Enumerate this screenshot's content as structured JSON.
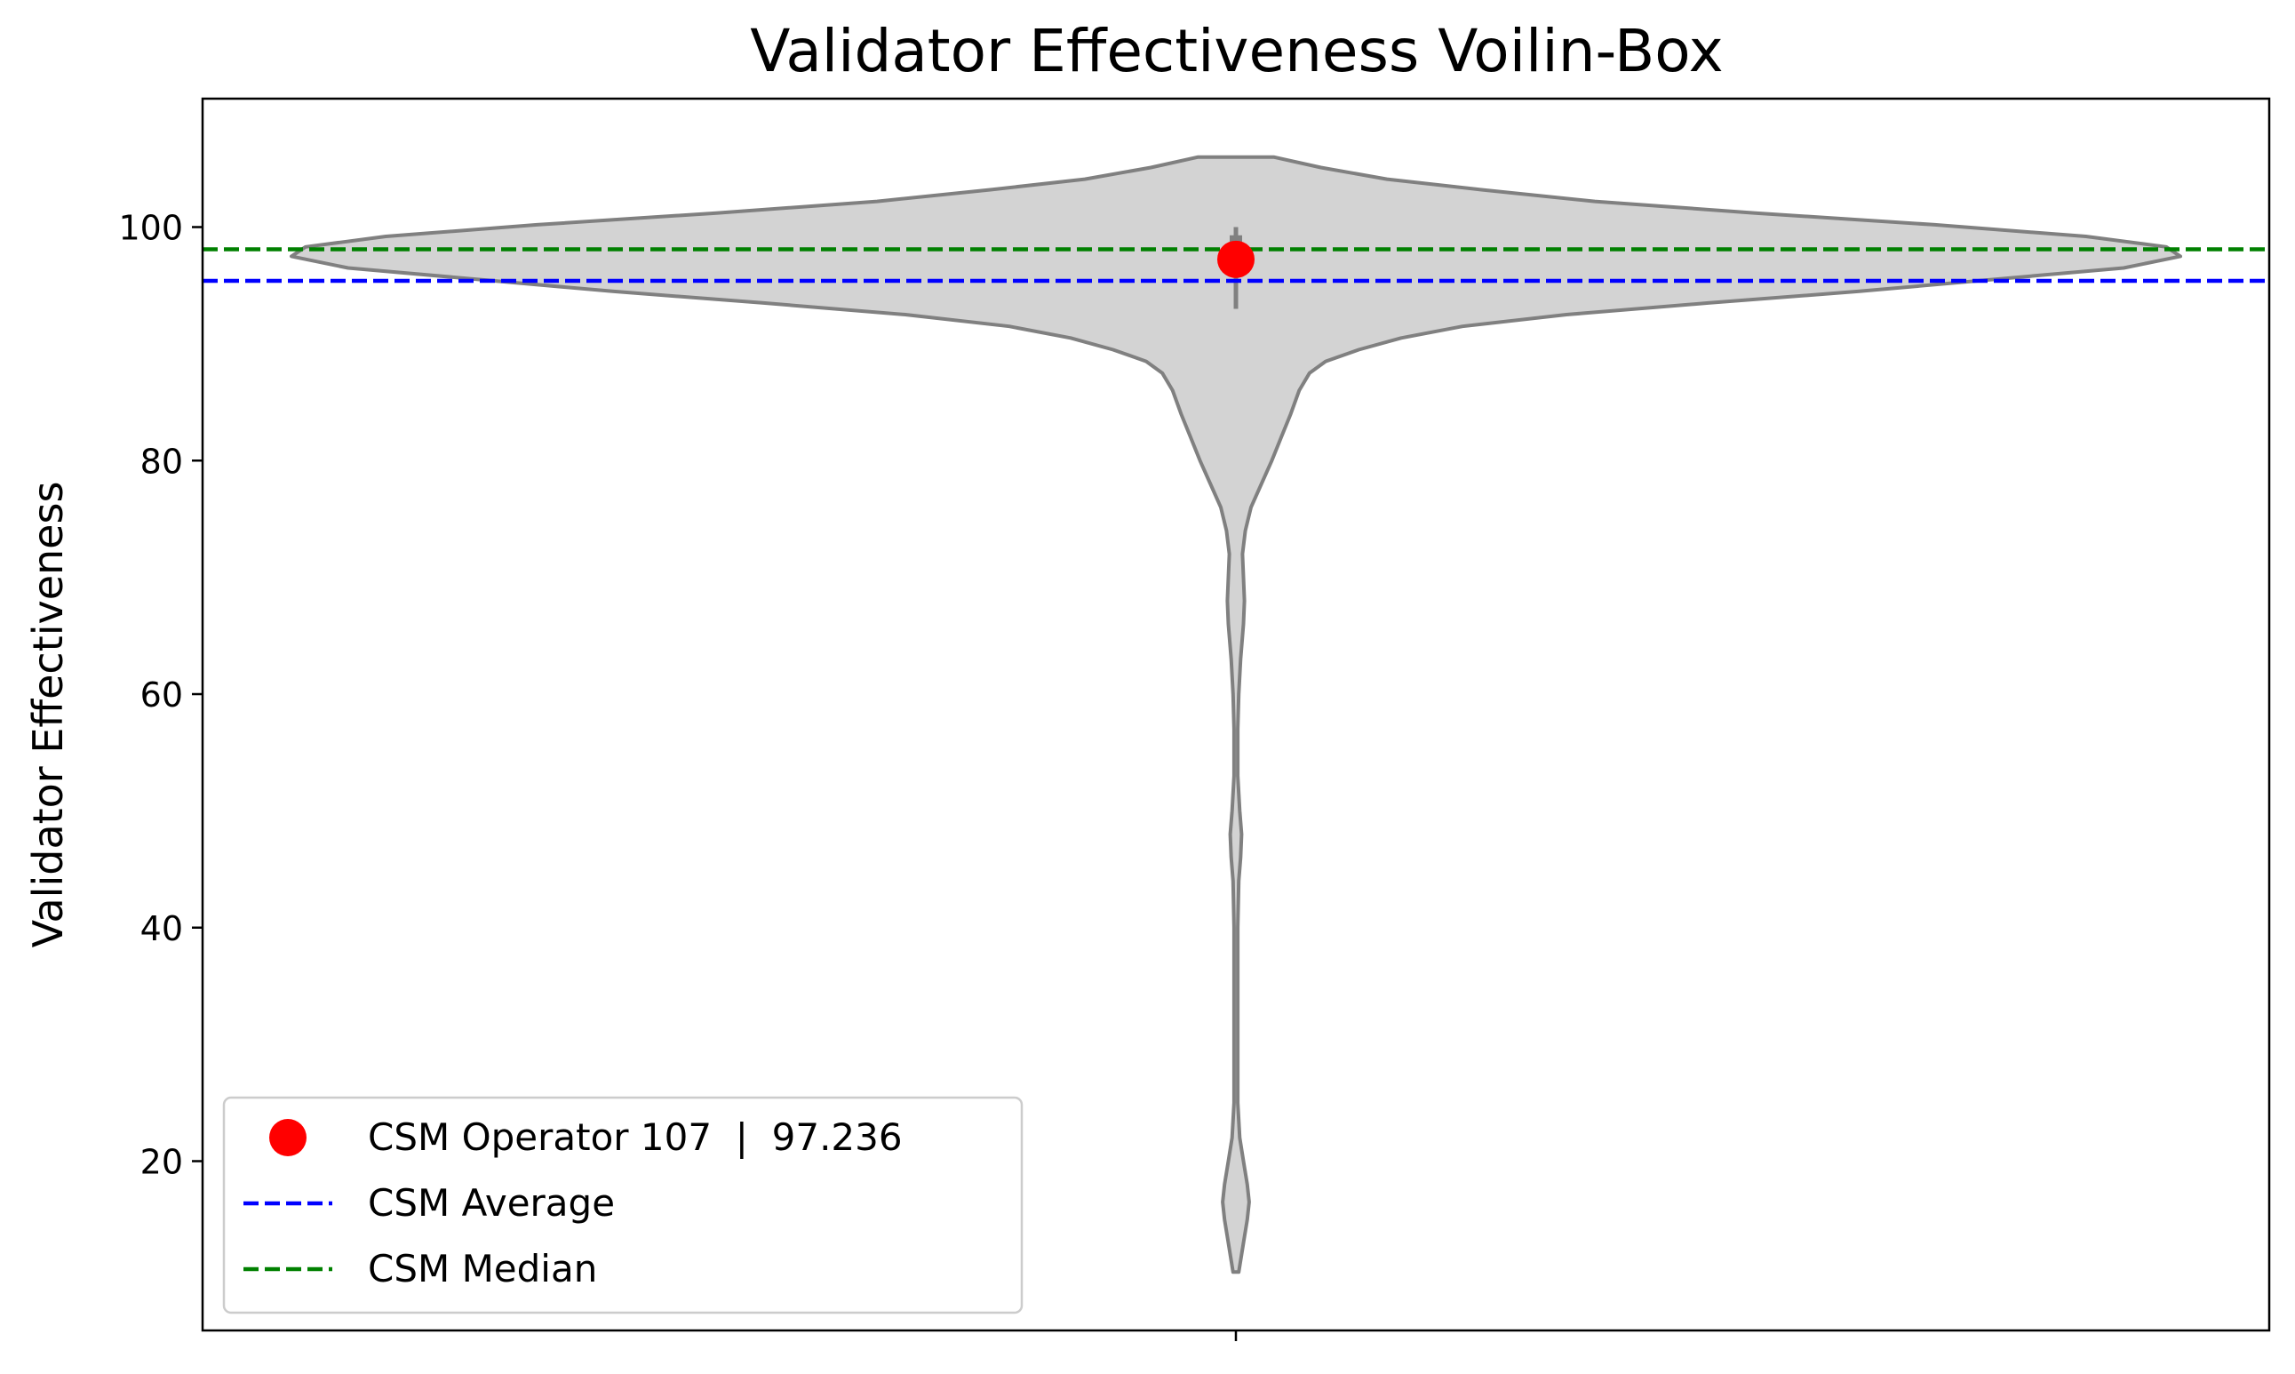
{
  "chart_data": {
    "type": "violin",
    "title": "Validator Effectiveness Voilin-Box",
    "xlabel": "",
    "ylabel": "Validator Effectiveness",
    "ylim": [
      5.5,
      111
    ],
    "yticks": [
      20,
      40,
      60,
      80,
      100
    ],
    "grid": false,
    "legend_position": "lower-left",
    "violin": {
      "fill_color": "#d3d3d3",
      "edge_color": "#808080",
      "profile_max_half_width": 1.0,
      "profile": [
        {
          "y": 10.5,
          "w": 0.003
        },
        {
          "y": 13,
          "w": 0.008
        },
        {
          "y": 15,
          "w": 0.012
        },
        {
          "y": 16.5,
          "w": 0.014
        },
        {
          "y": 18,
          "w": 0.012
        },
        {
          "y": 20,
          "w": 0.008
        },
        {
          "y": 22,
          "w": 0.004
        },
        {
          "y": 25,
          "w": 0.002
        },
        {
          "y": 30,
          "w": 0.002
        },
        {
          "y": 40,
          "w": 0.002
        },
        {
          "y": 44,
          "w": 0.003
        },
        {
          "y": 46,
          "w": 0.005
        },
        {
          "y": 48,
          "w": 0.006
        },
        {
          "y": 50,
          "w": 0.004
        },
        {
          "y": 53,
          "w": 0.002
        },
        {
          "y": 57,
          "w": 0.002
        },
        {
          "y": 60,
          "w": 0.003
        },
        {
          "y": 63,
          "w": 0.005
        },
        {
          "y": 66,
          "w": 0.008
        },
        {
          "y": 68,
          "w": 0.009
        },
        {
          "y": 70,
          "w": 0.008
        },
        {
          "y": 72,
          "w": 0.007
        },
        {
          "y": 74,
          "w": 0.01
        },
        {
          "y": 76,
          "w": 0.016
        },
        {
          "y": 78,
          "w": 0.027
        },
        {
          "y": 80,
          "w": 0.038
        },
        {
          "y": 82,
          "w": 0.048
        },
        {
          "y": 84,
          "w": 0.058
        },
        {
          "y": 86,
          "w": 0.067
        },
        {
          "y": 87.5,
          "w": 0.078
        },
        {
          "y": 88.5,
          "w": 0.095
        },
        {
          "y": 89.5,
          "w": 0.13
        },
        {
          "y": 90.5,
          "w": 0.175
        },
        {
          "y": 91.5,
          "w": 0.24
        },
        {
          "y": 92.5,
          "w": 0.35
        },
        {
          "y": 93.5,
          "w": 0.5
        },
        {
          "y": 94.5,
          "w": 0.66
        },
        {
          "y": 95.5,
          "w": 0.8
        },
        {
          "y": 96.5,
          "w": 0.94
        },
        {
          "y": 97.5,
          "w": 1.0
        },
        {
          "y": 98.3,
          "w": 0.985
        },
        {
          "y": 99.2,
          "w": 0.9
        },
        {
          "y": 100.2,
          "w": 0.74
        },
        {
          "y": 101.2,
          "w": 0.55
        },
        {
          "y": 102.2,
          "w": 0.38
        },
        {
          "y": 103.2,
          "w": 0.26
        },
        {
          "y": 104.1,
          "w": 0.16
        },
        {
          "y": 105.1,
          "w": 0.09
        },
        {
          "y": 106,
          "w": 0.04
        }
      ]
    },
    "box": {
      "whisker_low": 93,
      "q1": 96.5,
      "q3": 99.3,
      "whisker_high": 100,
      "color": "#808080"
    },
    "series": [
      {
        "name": "CSM Operator 107  |  97.236",
        "type": "point",
        "value": 97.236,
        "color": "#ff0000"
      },
      {
        "name": "CSM Average",
        "type": "hline",
        "value": 95.4,
        "color": "#0000ff",
        "style": "dashed"
      },
      {
        "name": "CSM Median",
        "type": "hline",
        "value": 98.1,
        "color": "#008000",
        "style": "dashed"
      }
    ]
  }
}
